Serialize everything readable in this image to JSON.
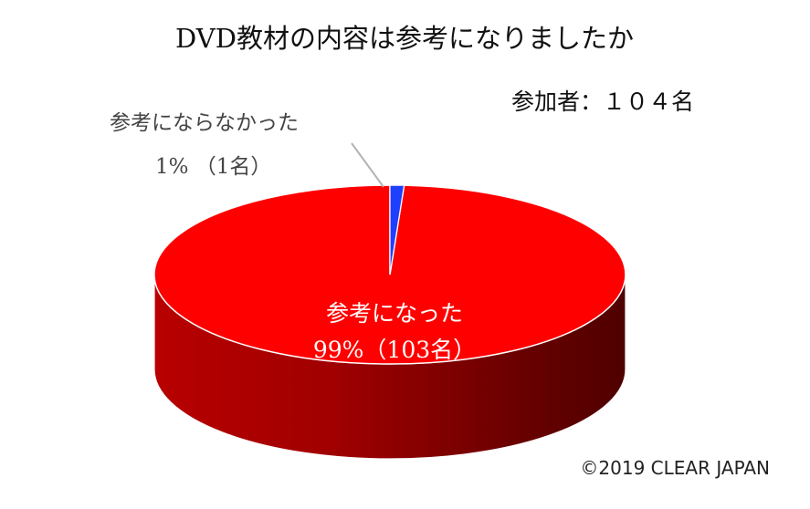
{
  "chart_data": {
    "type": "pie",
    "title": "DVD教材の内容は参考になりましたか",
    "participants": "参加者：１０４名",
    "slices": [
      {
        "label": "参考になった",
        "percent_label": "99%（103名）",
        "count": 103,
        "percent": 99,
        "color": "#ff0000"
      },
      {
        "label": "参考にならなかった",
        "percent_label": "1% （1名）",
        "count": 1,
        "percent": 1,
        "color": "#1f3fff"
      }
    ],
    "total": 104
  },
  "footer": {
    "copyright": "©2019 CLEAR JAPAN"
  }
}
